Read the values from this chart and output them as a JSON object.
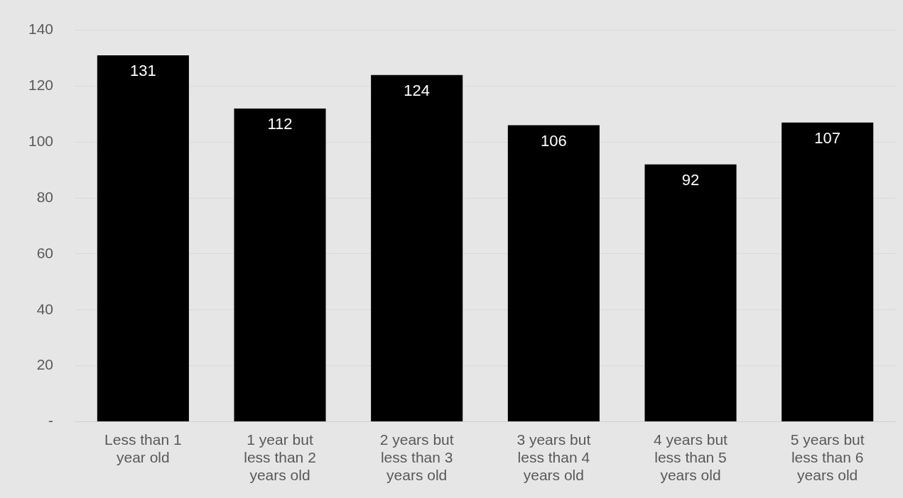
{
  "chart_data": {
    "type": "bar",
    "categories": [
      "Less than 1 year old",
      "1 year but less than 2 years old",
      "2 years but less than 3 years old",
      "3 years but less than 4 years old",
      "4 years but less than 5 years old",
      "5 years but less than 6 years old"
    ],
    "values": [
      131,
      112,
      124,
      106,
      92,
      107
    ],
    "color": "#000000",
    "ylim": [
      0,
      140
    ],
    "yticks": [
      {
        "value": 0,
        "label": "-"
      },
      20,
      40,
      60,
      80,
      100,
      120,
      140
    ],
    "grid": "y",
    "data_labels": true
  }
}
